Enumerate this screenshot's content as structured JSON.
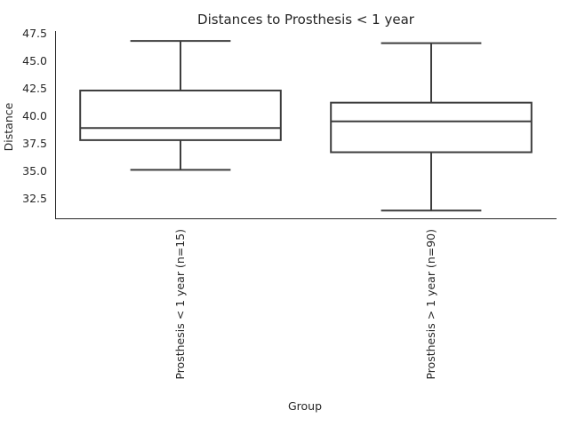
{
  "chart_data": {
    "type": "box",
    "title": "Distances to Prosthesis < 1 year",
    "xlabel": "Group",
    "ylabel": "Distance",
    "ylim": [
      30.7,
      47.7
    ],
    "yticks": [
      32.5,
      35.0,
      37.5,
      40.0,
      42.5,
      45.0,
      47.5
    ],
    "ytick_labels": [
      "32.5",
      "35.0",
      "37.5",
      "40.0",
      "42.5",
      "45.0",
      "47.5"
    ],
    "grid": false,
    "categories": [
      "Prosthesis < 1 year (n=15)",
      "Prosthesis > 1 year (n=90)"
    ],
    "boxes": [
      {
        "whisker_low": 35.1,
        "q1": 37.8,
        "median": 38.9,
        "q3": 42.3,
        "whisker_high": 46.8
      },
      {
        "whisker_low": 31.4,
        "q1": 36.7,
        "median": 39.5,
        "q3": 41.2,
        "whisker_high": 46.6
      }
    ]
  }
}
